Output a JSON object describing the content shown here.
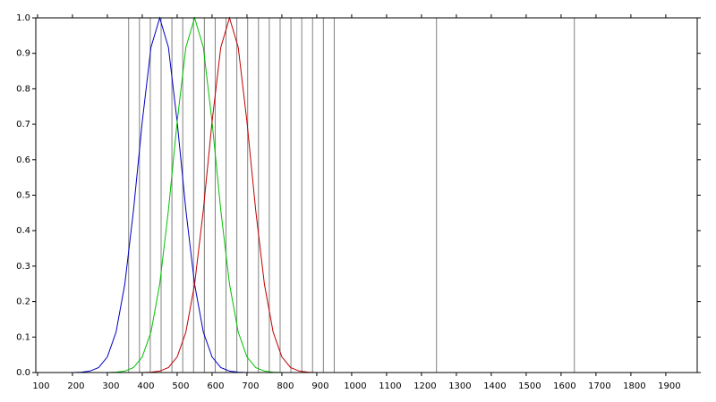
{
  "chart_data": {
    "type": "line",
    "x": [
      150,
      175,
      200,
      225,
      250,
      275,
      300,
      325,
      350,
      375,
      400,
      425,
      450,
      475,
      500,
      525,
      550,
      575,
      600,
      625,
      650,
      675,
      700,
      725,
      750,
      775,
      800,
      825,
      850,
      875,
      900,
      925,
      950
    ],
    "series": [
      {
        "color": "#0000c0",
        "values": [
          0,
          0,
          0,
          0.001,
          0.004,
          0.014,
          0.044,
          0.114,
          0.249,
          0.458,
          0.707,
          0.917,
          1,
          0.917,
          0.707,
          0.458,
          0.249,
          0.114,
          0.044,
          0.014,
          0.004,
          0.001,
          0,
          0,
          0,
          0,
          0,
          0,
          0,
          0,
          0,
          0,
          0
        ]
      },
      {
        "color": "#00c000",
        "values": [
          0,
          0,
          0,
          0,
          0,
          0,
          0,
          0.001,
          0.004,
          0.014,
          0.044,
          0.114,
          0.249,
          0.458,
          0.707,
          0.917,
          1,
          0.917,
          0.707,
          0.458,
          0.249,
          0.114,
          0.044,
          0.014,
          0.004,
          0.001,
          0,
          0,
          0,
          0,
          0,
          0,
          0
        ]
      },
      {
        "color": "#c00000",
        "values": [
          0,
          0,
          0,
          0,
          0,
          0,
          0,
          0,
          0,
          0,
          0,
          0.001,
          0.004,
          0.014,
          0.044,
          0.114,
          0.249,
          0.458,
          0.707,
          0.917,
          1,
          0.917,
          0.707,
          0.458,
          0.249,
          0.114,
          0.044,
          0.014,
          0.004,
          0.001,
          0,
          0,
          0
        ]
      }
    ],
    "vlines": [
      361,
      392,
      423,
      454,
      485,
      516,
      547,
      578,
      609,
      640,
      671,
      702,
      733,
      764,
      795,
      826,
      857,
      888,
      919,
      950,
      1243,
      1638
    ],
    "vline_color": "#808080",
    "xlim": [
      95,
      1990
    ],
    "xticks": [
      100,
      200,
      300,
      400,
      500,
      600,
      700,
      800,
      900,
      1000,
      1100,
      1200,
      1300,
      1400,
      1500,
      1600,
      1700,
      1800,
      1900
    ],
    "ylim": [
      0,
      1
    ],
    "yticks": [
      {
        "value": 0,
        "label": "0.0"
      },
      0.1,
      0.2,
      0.3,
      0.4,
      0.5,
      0.6,
      0.7,
      0.8,
      0.9,
      {
        "value": 1,
        "label": "1.0"
      }
    ]
  }
}
